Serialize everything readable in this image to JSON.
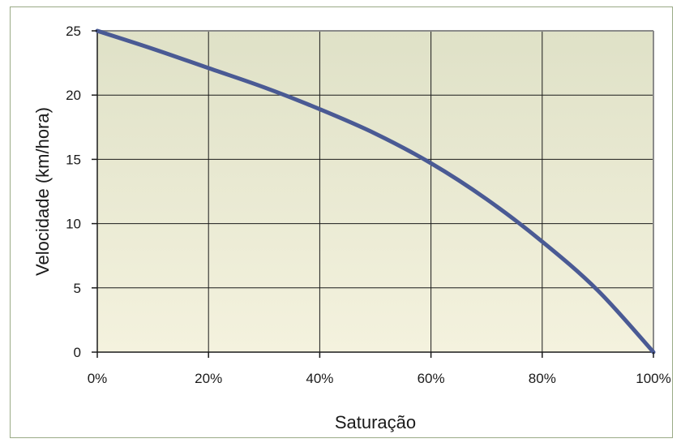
{
  "chart_data": {
    "type": "line",
    "title": "",
    "xlabel": "Saturação",
    "ylabel": "Velocidade (km/hora)",
    "xlim": [
      0,
      100
    ],
    "ylim": [
      0,
      25
    ],
    "x_ticks": [
      0,
      20,
      40,
      60,
      80,
      100
    ],
    "x_tick_labels": [
      "0%",
      "20%",
      "40%",
      "60%",
      "80%",
      "100%"
    ],
    "y_ticks": [
      0,
      5,
      10,
      15,
      20,
      25
    ],
    "y_tick_labels": [
      "0",
      "5",
      "10",
      "15",
      "20",
      "25"
    ],
    "grid": true,
    "series": [
      {
        "color": "#4a5a94",
        "x": [
          0,
          10,
          20,
          30,
          40,
          50,
          60,
          70,
          80,
          90,
          100
        ],
        "y": [
          25,
          23.6,
          22.1,
          20.6,
          18.9,
          17.0,
          14.7,
          11.9,
          8.6,
          4.8,
          0
        ]
      }
    ]
  },
  "colors": {
    "plot_bg_top": "#dfe1c7",
    "plot_bg_bottom": "#f4f2de",
    "grid": "#1a1a1a",
    "frame": "#9aaa86"
  }
}
